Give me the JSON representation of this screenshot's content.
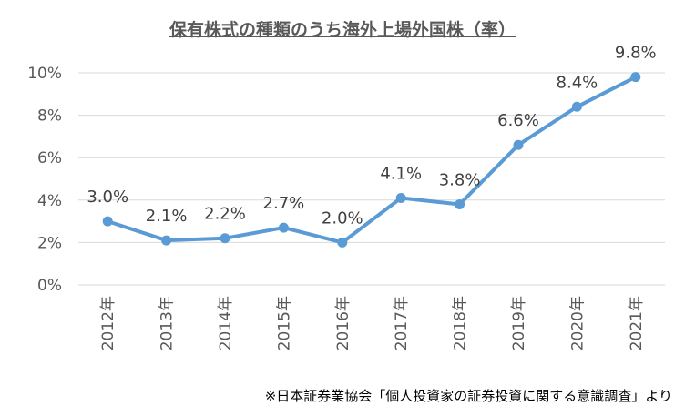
{
  "chart_data": {
    "type": "line",
    "title": "保有株式の種類のうち海外上場外国株（率）",
    "categories": [
      "2012年",
      "2013年",
      "2014年",
      "2015年",
      "2016年",
      "2017年",
      "2018年",
      "2019年",
      "2020年",
      "2021年"
    ],
    "series": [
      {
        "values": [
          3.0,
          2.1,
          2.2,
          2.7,
          2.0,
          4.1,
          3.8,
          6.6,
          8.4,
          9.8
        ],
        "labels": [
          "3.0%",
          "2.1%",
          "2.2%",
          "2.7%",
          "2.0%",
          "4.1%",
          "3.8%",
          "6.6%",
          "8.4%",
          "9.8%"
        ]
      }
    ],
    "yticks": [
      "0%",
      "2%",
      "4%",
      "6%",
      "8%",
      "10%"
    ],
    "ylim": [
      0,
      10
    ],
    "grid": true,
    "line_color": "#5B9BD5",
    "grid_color": "#D9D9D9"
  },
  "source_note": "※日本証券業協会「個人投資家の証券投資に関する意識調査」より"
}
